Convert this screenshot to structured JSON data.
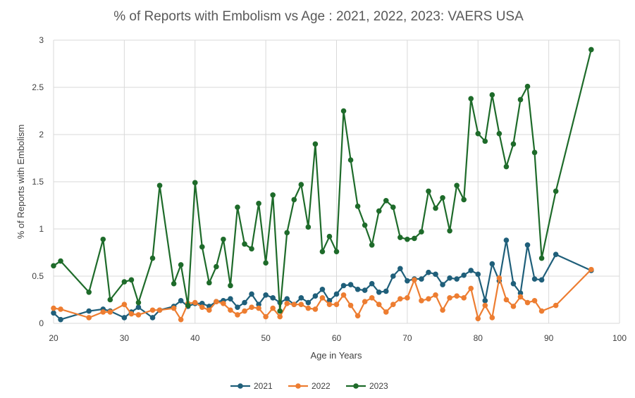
{
  "chart_data": {
    "type": "line",
    "title": "% of Reports with Embolism vs Age : 2021, 2022, 2023: VAERS USA",
    "xlabel": "Age in Years",
    "ylabel": "% of Reports with Embolism",
    "xlim": [
      20,
      100
    ],
    "ylim": [
      0,
      3
    ],
    "xticks": [
      20,
      30,
      40,
      50,
      60,
      70,
      80,
      90,
      100
    ],
    "yticks": [
      0,
      0.5,
      1,
      1.5,
      2,
      2.5,
      3
    ],
    "ytick_labels": [
      "0",
      "0.5",
      "1",
      "1.5",
      "2",
      "2.5",
      "3"
    ],
    "grid": true,
    "legend_position": "bottom",
    "series": [
      {
        "name": "2021",
        "color": "#1f5f7a",
        "x": [
          20,
          21,
          25,
          27,
          28,
          30,
          31,
          32,
          34,
          35,
          37,
          38,
          39,
          40,
          41,
          42,
          43,
          44,
          45,
          46,
          47,
          48,
          49,
          50,
          51,
          52,
          53,
          54,
          55,
          56,
          57,
          58,
          59,
          60,
          61,
          62,
          63,
          64,
          65,
          66,
          67,
          68,
          69,
          70,
          71,
          72,
          73,
          74,
          75,
          76,
          77,
          78,
          79,
          80,
          81,
          82,
          83,
          84,
          85,
          86,
          87,
          88,
          89,
          91,
          96
        ],
        "y": [
          0.11,
          0.04,
          0.13,
          0.15,
          0.13,
          0.06,
          0.12,
          0.17,
          0.06,
          0.14,
          0.18,
          0.24,
          0.18,
          0.21,
          0.21,
          0.18,
          0.23,
          0.24,
          0.26,
          0.17,
          0.22,
          0.31,
          0.2,
          0.3,
          0.27,
          0.22,
          0.26,
          0.2,
          0.27,
          0.22,
          0.29,
          0.36,
          0.24,
          0.31,
          0.4,
          0.41,
          0.36,
          0.35,
          0.42,
          0.33,
          0.34,
          0.5,
          0.58,
          0.45,
          0.47,
          0.47,
          0.54,
          0.52,
          0.41,
          0.48,
          0.47,
          0.51,
          0.56,
          0.52,
          0.24,
          0.63,
          0.45,
          0.88,
          0.42,
          0.32,
          0.83,
          0.47,
          0.46,
          0.73,
          0.56
        ]
      },
      {
        "name": "2022",
        "color": "#ed7d31",
        "x": [
          20,
          21,
          25,
          27,
          28,
          30,
          31,
          32,
          34,
          35,
          37,
          38,
          39,
          40,
          41,
          42,
          43,
          44,
          45,
          46,
          47,
          48,
          49,
          50,
          51,
          52,
          53,
          54,
          55,
          56,
          57,
          58,
          59,
          60,
          61,
          62,
          63,
          64,
          65,
          66,
          67,
          68,
          69,
          70,
          71,
          72,
          73,
          74,
          75,
          76,
          77,
          78,
          79,
          80,
          81,
          82,
          83,
          84,
          85,
          86,
          87,
          88,
          89,
          91,
          96
        ],
        "y": [
          0.16,
          0.15,
          0.06,
          0.12,
          0.12,
          0.2,
          0.1,
          0.09,
          0.14,
          0.14,
          0.16,
          0.04,
          0.21,
          0.22,
          0.17,
          0.14,
          0.23,
          0.21,
          0.14,
          0.09,
          0.13,
          0.17,
          0.16,
          0.07,
          0.16,
          0.07,
          0.21,
          0.2,
          0.2,
          0.16,
          0.15,
          0.27,
          0.2,
          0.2,
          0.3,
          0.19,
          0.08,
          0.23,
          0.27,
          0.2,
          0.12,
          0.2,
          0.26,
          0.27,
          0.46,
          0.24,
          0.26,
          0.3,
          0.14,
          0.27,
          0.29,
          0.27,
          0.37,
          0.05,
          0.19,
          0.06,
          0.48,
          0.25,
          0.18,
          0.28,
          0.22,
          0.24,
          0.13,
          0.19,
          0.57
        ]
      },
      {
        "name": "2023",
        "color": "#1e6b2a",
        "x": [
          20,
          21,
          25,
          27,
          28,
          30,
          31,
          32,
          34,
          35,
          37,
          38,
          39,
          40,
          41,
          42,
          43,
          44,
          45,
          46,
          47,
          48,
          49,
          50,
          51,
          52,
          53,
          54,
          55,
          56,
          57,
          58,
          59,
          60,
          61,
          62,
          63,
          64,
          65,
          66,
          67,
          68,
          69,
          70,
          71,
          72,
          73,
          74,
          75,
          76,
          77,
          78,
          79,
          80,
          81,
          82,
          83,
          84,
          85,
          86,
          87,
          88,
          89,
          91,
          96
        ],
        "y": [
          0.61,
          0.66,
          0.33,
          0.89,
          0.25,
          0.44,
          0.46,
          0.22,
          0.69,
          1.46,
          0.42,
          0.62,
          0.19,
          1.49,
          0.81,
          0.43,
          0.6,
          0.89,
          0.4,
          1.23,
          0.84,
          0.79,
          1.27,
          0.64,
          1.36,
          0.13,
          0.96,
          1.31,
          1.47,
          1.02,
          1.9,
          0.76,
          0.92,
          0.76,
          2.25,
          1.73,
          1.24,
          1.04,
          0.83,
          1.19,
          1.3,
          1.23,
          0.91,
          0.89,
          0.9,
          0.97,
          1.4,
          1.22,
          1.33,
          0.98,
          1.46,
          1.31,
          2.38,
          2.01,
          1.93,
          2.42,
          2.01,
          1.66,
          1.9,
          2.37,
          2.51,
          1.81,
          0.69,
          1.4,
          2.9
        ]
      }
    ]
  }
}
